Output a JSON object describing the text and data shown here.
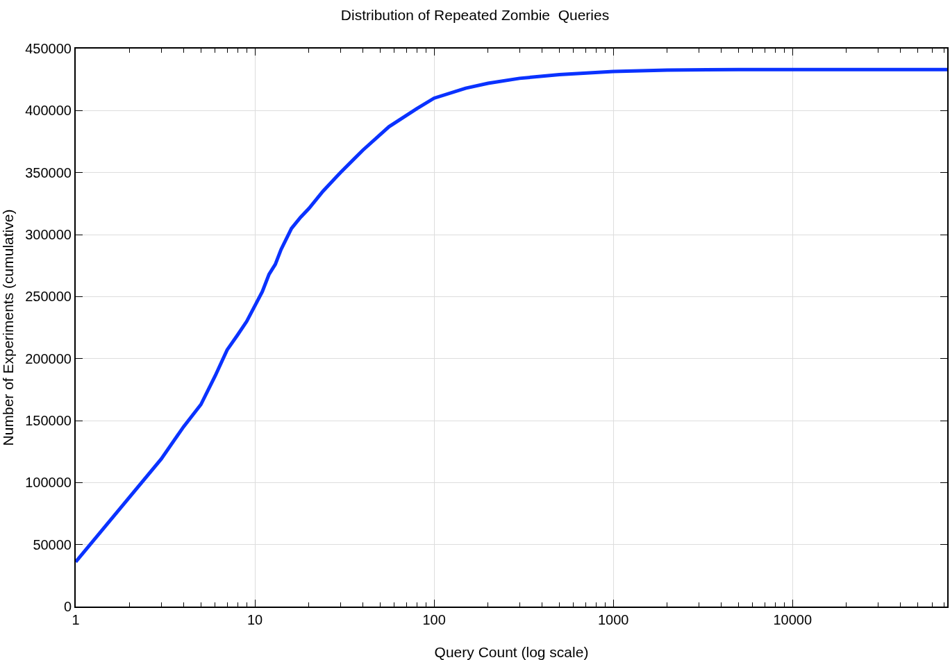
{
  "chart_data": {
    "type": "line",
    "title": "Distribution of Repeated Zombie  Queries",
    "xlabel": "Query Count (log scale)",
    "ylabel": "Number of Experiments (cumulative)",
    "log": "x",
    "grid": true,
    "marker": "none",
    "line_style": "solid",
    "xlim": [
      1,
      73000
    ],
    "xticks": [
      1,
      10,
      100,
      1000,
      10000
    ],
    "ylim": [
      0,
      450000
    ],
    "yticks": [
      0,
      50000,
      100000,
      150000,
      200000,
      250000,
      300000,
      350000,
      400000,
      450000
    ],
    "x": [
      1,
      3,
      4,
      5,
      6,
      7,
      8,
      9,
      11,
      12,
      13,
      14,
      16,
      18,
      20,
      24,
      30,
      40,
      56,
      80,
      100,
      150,
      200,
      300,
      500,
      1000,
      2000,
      5000,
      73000
    ],
    "series": [
      {
        "color": "#0a32ff",
        "values": [
          36000,
          119000,
          145000,
          163000,
          186000,
          207000,
          219000,
          230000,
          254000,
          268000,
          276000,
          288000,
          305000,
          314000,
          321000,
          335000,
          350000,
          368000,
          387000,
          401500,
          410000,
          418000,
          422000,
          426000,
          429000,
          431500,
          432700,
          433000,
          433000
        ]
      }
    ]
  }
}
